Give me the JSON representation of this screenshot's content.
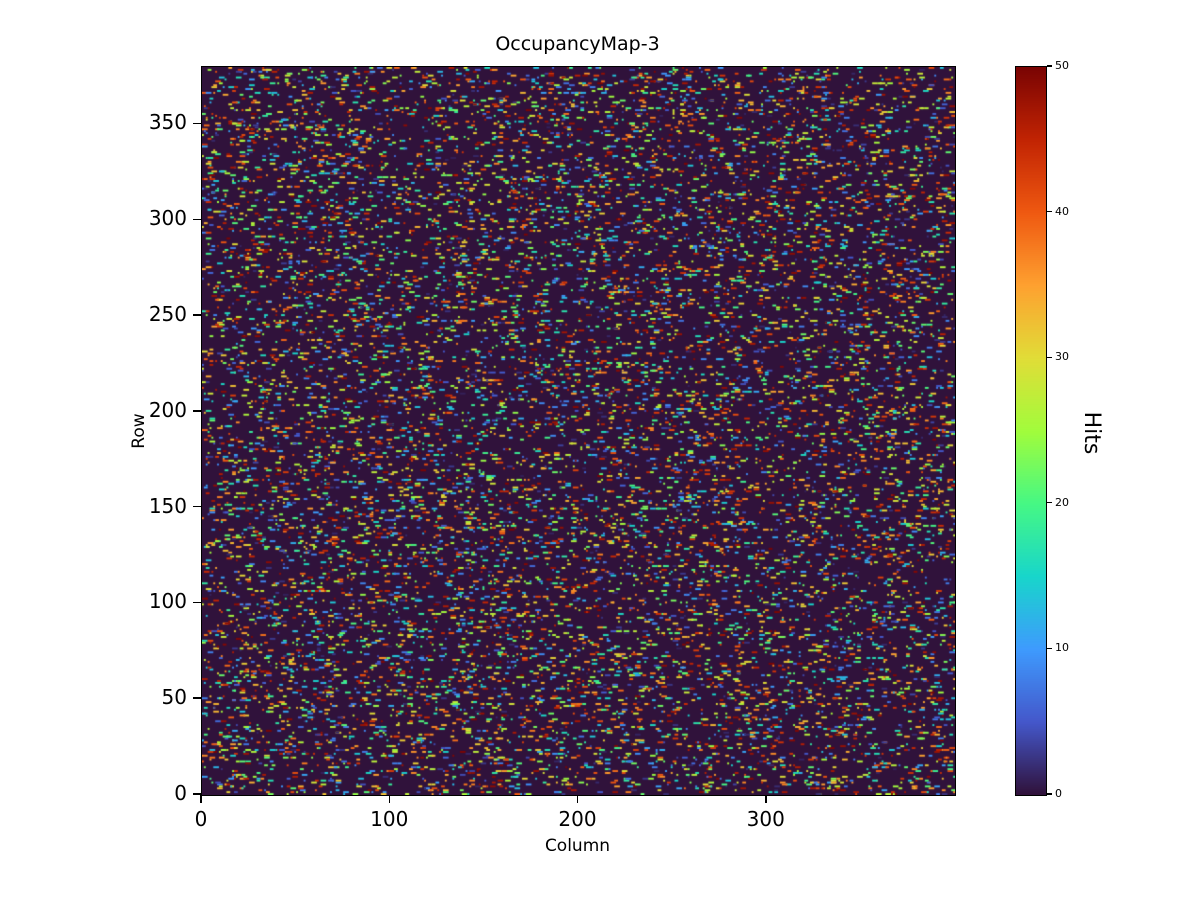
{
  "figure": {
    "title": "OccupancyMap-3",
    "xlabel": "Column",
    "ylabel": "Row",
    "colorbar_label": "Hits",
    "background_color": "#ffffff"
  },
  "chart_data": {
    "type": "heatmap",
    "title": "OccupancyMap-3",
    "xlabel": "Column",
    "ylabel": "Row",
    "x_range": [
      0,
      400
    ],
    "y_range": [
      0,
      380
    ],
    "x_ticks": [
      "0",
      "100",
      "200",
      "300"
    ],
    "x_tick_values": [
      0,
      100,
      200,
      300
    ],
    "y_ticks": [
      "0",
      "50",
      "100",
      "150",
      "200",
      "250",
      "300",
      "350"
    ],
    "y_tick_values": [
      0,
      50,
      100,
      150,
      200,
      250,
      300,
      350
    ],
    "grid": false,
    "legend": "none",
    "colorbar": {
      "label": "Hits",
      "min": 0,
      "max": 50,
      "ticks": [
        "0",
        "10",
        "20",
        "30",
        "40",
        "50"
      ],
      "tick_values": [
        0,
        10,
        20,
        30,
        40,
        50
      ],
      "position": "right"
    },
    "colormap": {
      "name": "turbo",
      "background_hex": "#30123b",
      "stops": [
        [
          0.0,
          "#30123b"
        ],
        [
          0.1,
          "#4458cb"
        ],
        [
          0.2,
          "#3e9bfe"
        ],
        [
          0.3,
          "#18d6cb"
        ],
        [
          0.4,
          "#46f884"
        ],
        [
          0.5,
          "#a2fc3c"
        ],
        [
          0.6,
          "#e1dd37"
        ],
        [
          0.7,
          "#fea130"
        ],
        [
          0.8,
          "#ef5911"
        ],
        [
          0.9,
          "#c22403"
        ],
        [
          1.0,
          "#7a0403"
        ]
      ]
    },
    "matrix": {
      "rows": 380,
      "cols": 400,
      "background_value": 0,
      "pattern": "sparse-random-hits",
      "seed": 42,
      "n_marks": 13000,
      "max_run_cells": 3,
      "value_min": 1,
      "value_max": 50,
      "value_distribution": "uniform"
    }
  }
}
